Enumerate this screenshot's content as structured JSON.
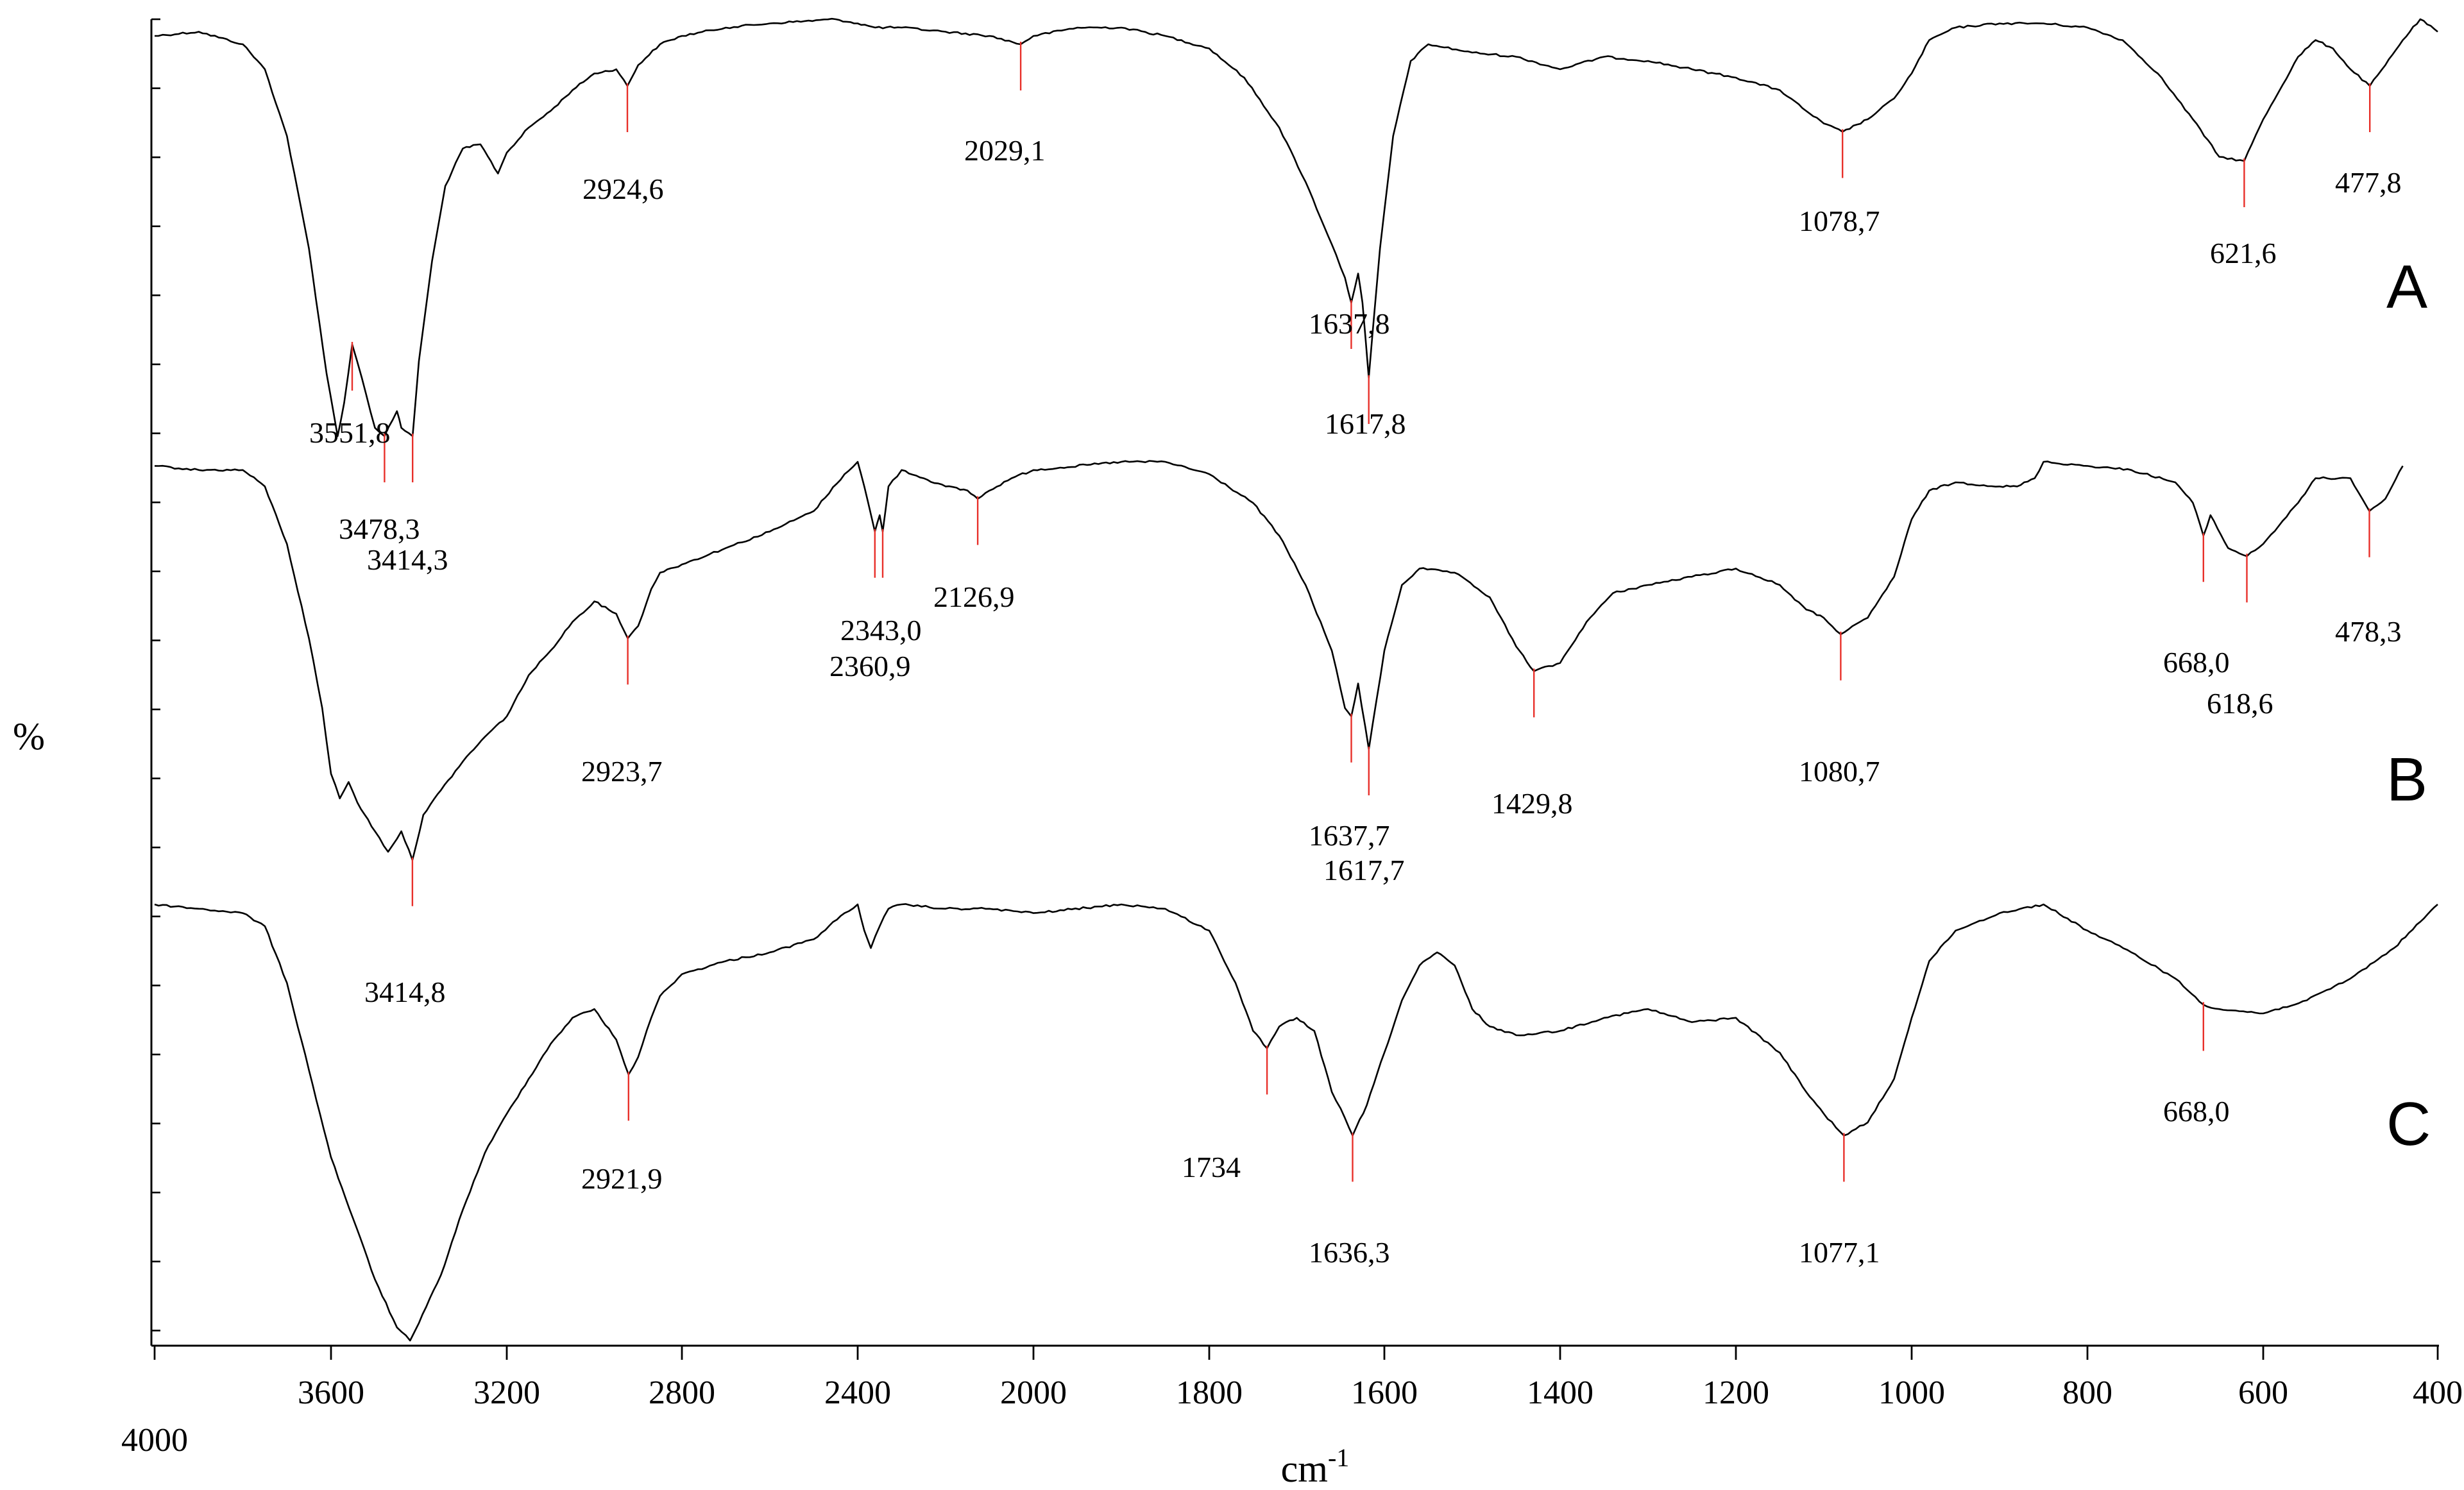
{
  "chart_data": {
    "type": "line",
    "xlabel": "cm-1",
    "ylabel": "%",
    "x_reversed": true,
    "xlim": [
      4000,
      400
    ],
    "x_ticks": [
      4000,
      3600,
      3200,
      2800,
      2400,
      2000,
      1800,
      1600,
      1400,
      1200,
      1000,
      800,
      600,
      400
    ],
    "grid": false,
    "legend": "none",
    "colors": {
      "trace": "#000000",
      "peak_marker": "#e8302a",
      "axis": "#000000"
    },
    "series": [
      {
        "name": "A",
        "points": [
          [
            4000,
            0.04
          ],
          [
            3900,
            0.03
          ],
          [
            3800,
            0.06
          ],
          [
            3750,
            0.12
          ],
          [
            3700,
            0.28
          ],
          [
            3650,
            0.55
          ],
          [
            3610,
            0.85
          ],
          [
            3585,
            1.0
          ],
          [
            3570,
            0.92
          ],
          [
            3551.8,
            0.78
          ],
          [
            3530,
            0.86
          ],
          [
            3500,
            0.98
          ],
          [
            3478.3,
            1.0
          ],
          [
            3450,
            0.94
          ],
          [
            3440,
            0.98
          ],
          [
            3414.3,
            1.0
          ],
          [
            3400,
            0.82
          ],
          [
            3370,
            0.58
          ],
          [
            3340,
            0.4
          ],
          [
            3300,
            0.31
          ],
          [
            3260,
            0.3
          ],
          [
            3220,
            0.37
          ],
          [
            3200,
            0.32
          ],
          [
            3150,
            0.26
          ],
          [
            3100,
            0.22
          ],
          [
            3050,
            0.17
          ],
          [
            3000,
            0.13
          ],
          [
            2950,
            0.12
          ],
          [
            2924.6,
            0.16
          ],
          [
            2900,
            0.11
          ],
          [
            2850,
            0.06
          ],
          [
            2800,
            0.04
          ],
          [
            2700,
            0.02
          ],
          [
            2600,
            0.01
          ],
          [
            2450,
            0.0
          ],
          [
            2400,
            0.01
          ],
          [
            2360,
            0.02
          ],
          [
            2300,
            0.02
          ],
          [
            2200,
            0.03
          ],
          [
            2100,
            0.04
          ],
          [
            2029.1,
            0.06
          ],
          [
            2000,
            0.04
          ],
          [
            1950,
            0.02
          ],
          [
            1900,
            0.02
          ],
          [
            1850,
            0.04
          ],
          [
            1800,
            0.07
          ],
          [
            1760,
            0.14
          ],
          [
            1720,
            0.26
          ],
          [
            1690,
            0.39
          ],
          [
            1660,
            0.54
          ],
          [
            1645,
            0.62
          ],
          [
            1637.8,
            0.68
          ],
          [
            1630,
            0.61
          ],
          [
            1625,
            0.68
          ],
          [
            1617.8,
            0.86
          ],
          [
            1605,
            0.55
          ],
          [
            1590,
            0.28
          ],
          [
            1570,
            0.1
          ],
          [
            1550,
            0.06
          ],
          [
            1500,
            0.08
          ],
          [
            1450,
            0.09
          ],
          [
            1400,
            0.12
          ],
          [
            1350,
            0.09
          ],
          [
            1300,
            0.1
          ],
          [
            1250,
            0.12
          ],
          [
            1200,
            0.14
          ],
          [
            1150,
            0.17
          ],
          [
            1120,
            0.22
          ],
          [
            1100,
            0.25
          ],
          [
            1078.7,
            0.27
          ],
          [
            1050,
            0.24
          ],
          [
            1020,
            0.19
          ],
          [
            1000,
            0.13
          ],
          [
            980,
            0.05
          ],
          [
            950,
            0.02
          ],
          [
            900,
            0.01
          ],
          [
            850,
            0.01
          ],
          [
            800,
            0.02
          ],
          [
            760,
            0.05
          ],
          [
            720,
            0.13
          ],
          [
            680,
            0.24
          ],
          [
            650,
            0.33
          ],
          [
            621.6,
            0.34
          ],
          [
            600,
            0.24
          ],
          [
            560,
            0.09
          ],
          [
            540,
            0.05
          ],
          [
            520,
            0.07
          ],
          [
            500,
            0.12
          ],
          [
            477.8,
            0.16
          ],
          [
            460,
            0.11
          ],
          [
            440,
            0.05
          ],
          [
            420,
            0.0
          ],
          [
            400,
            0.03
          ]
        ]
      },
      {
        "name": "B",
        "points": [
          [
            4000,
            0.01
          ],
          [
            3900,
            0.02
          ],
          [
            3800,
            0.02
          ],
          [
            3750,
            0.06
          ],
          [
            3700,
            0.2
          ],
          [
            3650,
            0.43
          ],
          [
            3620,
            0.6
          ],
          [
            3600,
            0.76
          ],
          [
            3580,
            0.82
          ],
          [
            3560,
            0.78
          ],
          [
            3540,
            0.83
          ],
          [
            3500,
            0.9
          ],
          [
            3470,
            0.95
          ],
          [
            3440,
            0.9
          ],
          [
            3414.8,
            0.97
          ],
          [
            3390,
            0.86
          ],
          [
            3350,
            0.8
          ],
          [
            3300,
            0.73
          ],
          [
            3250,
            0.67
          ],
          [
            3200,
            0.62
          ],
          [
            3150,
            0.52
          ],
          [
            3100,
            0.46
          ],
          [
            3050,
            0.39
          ],
          [
            3000,
            0.34
          ],
          [
            2950,
            0.37
          ],
          [
            2923.7,
            0.43
          ],
          [
            2900,
            0.4
          ],
          [
            2870,
            0.31
          ],
          [
            2850,
            0.27
          ],
          [
            2800,
            0.25
          ],
          [
            2700,
            0.21
          ],
          [
            2600,
            0.17
          ],
          [
            2500,
            0.12
          ],
          [
            2430,
            0.03
          ],
          [
            2400,
            0.0
          ],
          [
            2385,
            0.06
          ],
          [
            2360.9,
            0.17
          ],
          [
            2350,
            0.13
          ],
          [
            2343,
            0.17
          ],
          [
            2330,
            0.06
          ],
          [
            2300,
            0.02
          ],
          [
            2250,
            0.04
          ],
          [
            2200,
            0.06
          ],
          [
            2150,
            0.07
          ],
          [
            2126.9,
            0.09
          ],
          [
            2100,
            0.07
          ],
          [
            2050,
            0.04
          ],
          [
            2000,
            0.02
          ],
          [
            1900,
            0.0
          ],
          [
            1850,
            0.0
          ],
          [
            1800,
            0.03
          ],
          [
            1750,
            0.1
          ],
          [
            1720,
            0.18
          ],
          [
            1690,
            0.3
          ],
          [
            1660,
            0.46
          ],
          [
            1645,
            0.6
          ],
          [
            1637.7,
            0.62
          ],
          [
            1630,
            0.54
          ],
          [
            1617.7,
            0.7
          ],
          [
            1600,
            0.46
          ],
          [
            1580,
            0.3
          ],
          [
            1560,
            0.26
          ],
          [
            1520,
            0.27
          ],
          [
            1480,
            0.33
          ],
          [
            1450,
            0.45
          ],
          [
            1429.8,
            0.51
          ],
          [
            1400,
            0.49
          ],
          [
            1370,
            0.39
          ],
          [
            1340,
            0.32
          ],
          [
            1300,
            0.3
          ],
          [
            1250,
            0.28
          ],
          [
            1200,
            0.26
          ],
          [
            1150,
            0.3
          ],
          [
            1120,
            0.36
          ],
          [
            1100,
            0.38
          ],
          [
            1080.7,
            0.42
          ],
          [
            1050,
            0.38
          ],
          [
            1020,
            0.28
          ],
          [
            1000,
            0.14
          ],
          [
            980,
            0.07
          ],
          [
            950,
            0.05
          ],
          [
            900,
            0.06
          ],
          [
            880,
            0.06
          ],
          [
            860,
            0.04
          ],
          [
            850,
            0.0
          ],
          [
            800,
            0.01
          ],
          [
            750,
            0.02
          ],
          [
            700,
            0.05
          ],
          [
            680,
            0.1
          ],
          [
            668,
            0.18
          ],
          [
            660,
            0.13
          ],
          [
            640,
            0.21
          ],
          [
            618.6,
            0.23
          ],
          [
            600,
            0.2
          ],
          [
            560,
            0.1
          ],
          [
            540,
            0.04
          ],
          [
            500,
            0.04
          ],
          [
            478.3,
            0.12
          ],
          [
            460,
            0.09
          ],
          [
            440,
            0.01
          ]
        ]
      },
      {
        "name": "C",
        "points": [
          [
            4000,
            0.0
          ],
          [
            3900,
            0.01
          ],
          [
            3800,
            0.02
          ],
          [
            3750,
            0.05
          ],
          [
            3700,
            0.18
          ],
          [
            3650,
            0.38
          ],
          [
            3600,
            0.58
          ],
          [
            3550,
            0.72
          ],
          [
            3500,
            0.86
          ],
          [
            3450,
            0.97
          ],
          [
            3420,
            1.0
          ],
          [
            3400,
            0.96
          ],
          [
            3350,
            0.85
          ],
          [
            3300,
            0.7
          ],
          [
            3250,
            0.57
          ],
          [
            3200,
            0.48
          ],
          [
            3150,
            0.4
          ],
          [
            3100,
            0.32
          ],
          [
            3050,
            0.26
          ],
          [
            3000,
            0.24
          ],
          [
            2950,
            0.31
          ],
          [
            2921.9,
            0.39
          ],
          [
            2900,
            0.35
          ],
          [
            2870,
            0.26
          ],
          [
            2850,
            0.21
          ],
          [
            2800,
            0.16
          ],
          [
            2700,
            0.13
          ],
          [
            2600,
            0.11
          ],
          [
            2500,
            0.08
          ],
          [
            2430,
            0.02
          ],
          [
            2400,
            0.0
          ],
          [
            2385,
            0.06
          ],
          [
            2370,
            0.1
          ],
          [
            2350,
            0.05
          ],
          [
            2330,
            0.01
          ],
          [
            2300,
            0.0
          ],
          [
            2200,
            0.01
          ],
          [
            2100,
            0.01
          ],
          [
            2000,
            0.02
          ],
          [
            1900,
            0.0
          ],
          [
            1850,
            0.01
          ],
          [
            1800,
            0.06
          ],
          [
            1770,
            0.18
          ],
          [
            1750,
            0.29
          ],
          [
            1734,
            0.33
          ],
          [
            1720,
            0.28
          ],
          [
            1700,
            0.26
          ],
          [
            1680,
            0.29
          ],
          [
            1660,
            0.43
          ],
          [
            1645,
            0.49
          ],
          [
            1636.3,
            0.53
          ],
          [
            1620,
            0.46
          ],
          [
            1600,
            0.34
          ],
          [
            1580,
            0.22
          ],
          [
            1560,
            0.14
          ],
          [
            1540,
            0.11
          ],
          [
            1520,
            0.14
          ],
          [
            1500,
            0.24
          ],
          [
            1480,
            0.28
          ],
          [
            1450,
            0.3
          ],
          [
            1400,
            0.29
          ],
          [
            1350,
            0.26
          ],
          [
            1300,
            0.24
          ],
          [
            1250,
            0.27
          ],
          [
            1200,
            0.26
          ],
          [
            1150,
            0.34
          ],
          [
            1120,
            0.43
          ],
          [
            1100,
            0.48
          ],
          [
            1077.1,
            0.53
          ],
          [
            1050,
            0.5
          ],
          [
            1020,
            0.4
          ],
          [
            1000,
            0.26
          ],
          [
            980,
            0.13
          ],
          [
            950,
            0.06
          ],
          [
            900,
            0.02
          ],
          [
            850,
            0.0
          ],
          [
            800,
            0.06
          ],
          [
            750,
            0.11
          ],
          [
            700,
            0.17
          ],
          [
            668,
            0.23
          ],
          [
            650,
            0.24
          ],
          [
            600,
            0.25
          ],
          [
            550,
            0.22
          ],
          [
            500,
            0.17
          ],
          [
            450,
            0.1
          ],
          [
            420,
            0.04
          ],
          [
            400,
            0.0
          ]
        ]
      }
    ],
    "annotations": [
      {
        "series": "A",
        "x": 3551.8,
        "label": "3551,8"
      },
      {
        "series": "A",
        "x": 3478.3,
        "label": "3478,3"
      },
      {
        "series": "A",
        "x": 3414.3,
        "label": "3414,3"
      },
      {
        "series": "A",
        "x": 2924.6,
        "label": "2924,6"
      },
      {
        "series": "A",
        "x": 2029.1,
        "label": "2029,1"
      },
      {
        "series": "A",
        "x": 1637.8,
        "label": "1637,8"
      },
      {
        "series": "A",
        "x": 1617.8,
        "label": "1617,8"
      },
      {
        "series": "A",
        "x": 1078.7,
        "label": "1078,7"
      },
      {
        "series": "A",
        "x": 621.6,
        "label": "621,6"
      },
      {
        "series": "A",
        "x": 477.8,
        "label": "477,8"
      },
      {
        "series": "B",
        "x": 3414.8,
        "label": "3414,8"
      },
      {
        "series": "B",
        "x": 2923.7,
        "label": "2923,7"
      },
      {
        "series": "B",
        "x": 2360.9,
        "label": "2360,9"
      },
      {
        "series": "B",
        "x": 2343.0,
        "label": "2343,0"
      },
      {
        "series": "B",
        "x": 2126.9,
        "label": "2126,9"
      },
      {
        "series": "B",
        "x": 1637.7,
        "label": "1637,7"
      },
      {
        "series": "B",
        "x": 1617.7,
        "label": "1617,7"
      },
      {
        "series": "B",
        "x": 1429.8,
        "label": "1429,8"
      },
      {
        "series": "B",
        "x": 1080.7,
        "label": "1080,7"
      },
      {
        "series": "B",
        "x": 668.0,
        "label": "668,0"
      },
      {
        "series": "B",
        "x": 618.6,
        "label": "618,6"
      },
      {
        "series": "B",
        "x": 478.3,
        "label": "478,3"
      },
      {
        "series": "C",
        "x": 2921.9,
        "label": "2921,9"
      },
      {
        "series": "C",
        "x": 1734,
        "label": "1734"
      },
      {
        "series": "C",
        "x": 1636.3,
        "label": "1636,3"
      },
      {
        "series": "C",
        "x": 1077.1,
        "label": "1077,1"
      },
      {
        "series": "C",
        "x": 668.0,
        "label": "668,0"
      }
    ]
  }
}
